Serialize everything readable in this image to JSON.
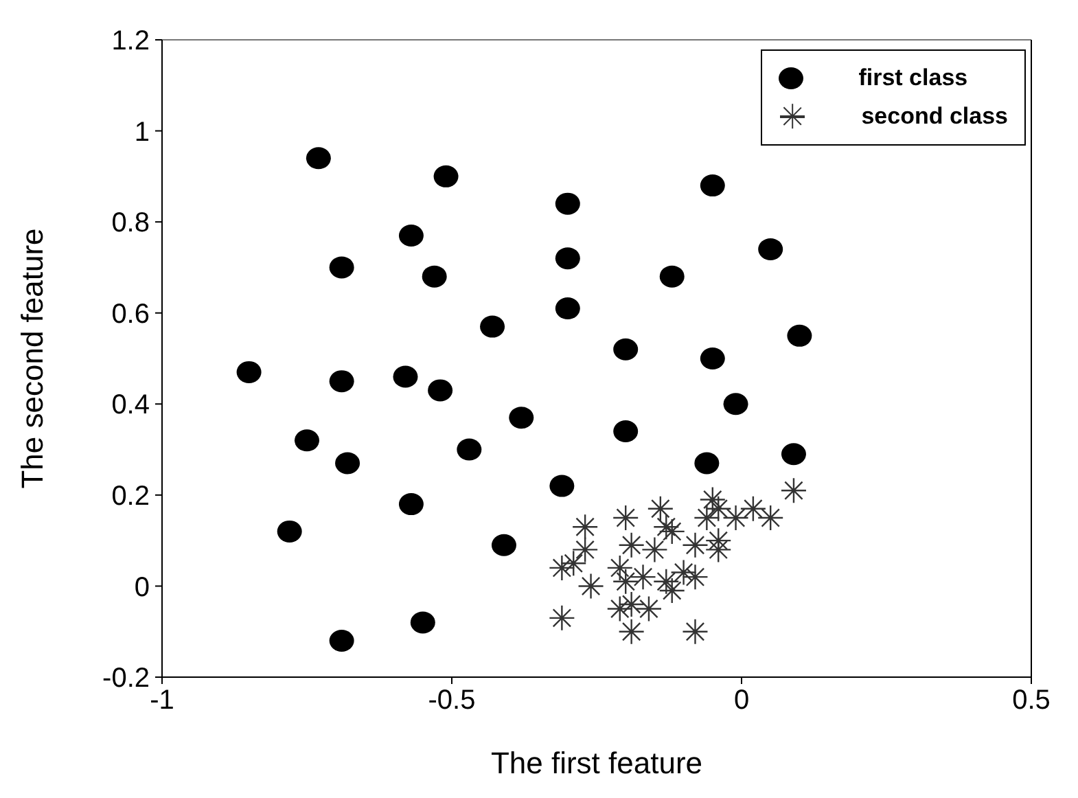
{
  "chart_data": {
    "type": "scatter",
    "xlabel": "The first feature",
    "ylabel": "The second feature",
    "xlim": [
      -1,
      0.5
    ],
    "xticks": [
      -1,
      -0.5,
      0,
      0.5
    ],
    "ylim": [
      -0.2,
      1.2
    ],
    "yticks": [
      -0.2,
      0,
      0.2,
      0.4,
      0.6,
      0.8,
      1,
      1.2
    ],
    "grid": false,
    "legend": "top right",
    "series": [
      {
        "name": "first class",
        "color": "#000000",
        "marker": "circle",
        "x": [
          -0.73,
          -0.51,
          -0.57,
          -0.69,
          -0.53,
          -0.43,
          -0.3,
          -0.3,
          -0.3,
          -0.05,
          0.05,
          -0.12,
          -0.2,
          -0.05,
          0.1,
          -0.01,
          -0.85,
          -0.69,
          -0.58,
          -0.52,
          -0.75,
          -0.68,
          -0.47,
          -0.38,
          -0.57,
          -0.78,
          -0.41,
          -0.55,
          -0.69,
          -0.2,
          0.09,
          -0.06,
          -0.31
        ],
        "values": [
          0.94,
          0.9,
          0.77,
          0.7,
          0.68,
          0.57,
          0.84,
          0.72,
          0.61,
          0.88,
          0.74,
          0.68,
          0.52,
          0.5,
          0.55,
          0.4,
          0.47,
          0.45,
          0.46,
          0.43,
          0.32,
          0.27,
          0.3,
          0.37,
          0.18,
          0.12,
          0.09,
          -0.08,
          -0.12,
          0.34,
          0.29,
          0.27,
          0.22
        ]
      },
      {
        "name": "second class",
        "color": "#333333",
        "marker": "cross",
        "x": [
          0.09,
          -0.05,
          -0.14,
          -0.2,
          -0.06,
          -0.01,
          0.02,
          0.05,
          -0.04,
          -0.27,
          -0.13,
          -0.12,
          -0.19,
          -0.15,
          -0.08,
          -0.04,
          -0.04,
          -0.27,
          -0.31,
          -0.29,
          -0.21,
          -0.17,
          -0.2,
          -0.13,
          -0.12,
          -0.1,
          -0.08,
          -0.26,
          -0.21,
          -0.19,
          -0.16,
          -0.31,
          -0.19,
          -0.08
        ],
        "values": [
          0.21,
          0.19,
          0.17,
          0.15,
          0.15,
          0.15,
          0.17,
          0.15,
          0.17,
          0.13,
          0.13,
          0.12,
          0.09,
          0.08,
          0.09,
          0.1,
          0.08,
          0.08,
          0.04,
          0.05,
          0.04,
          0.02,
          0.01,
          0.01,
          -0.01,
          0.03,
          0.02,
          0.0,
          -0.05,
          -0.04,
          -0.05,
          -0.07,
          -0.1,
          -0.1
        ]
      }
    ]
  }
}
